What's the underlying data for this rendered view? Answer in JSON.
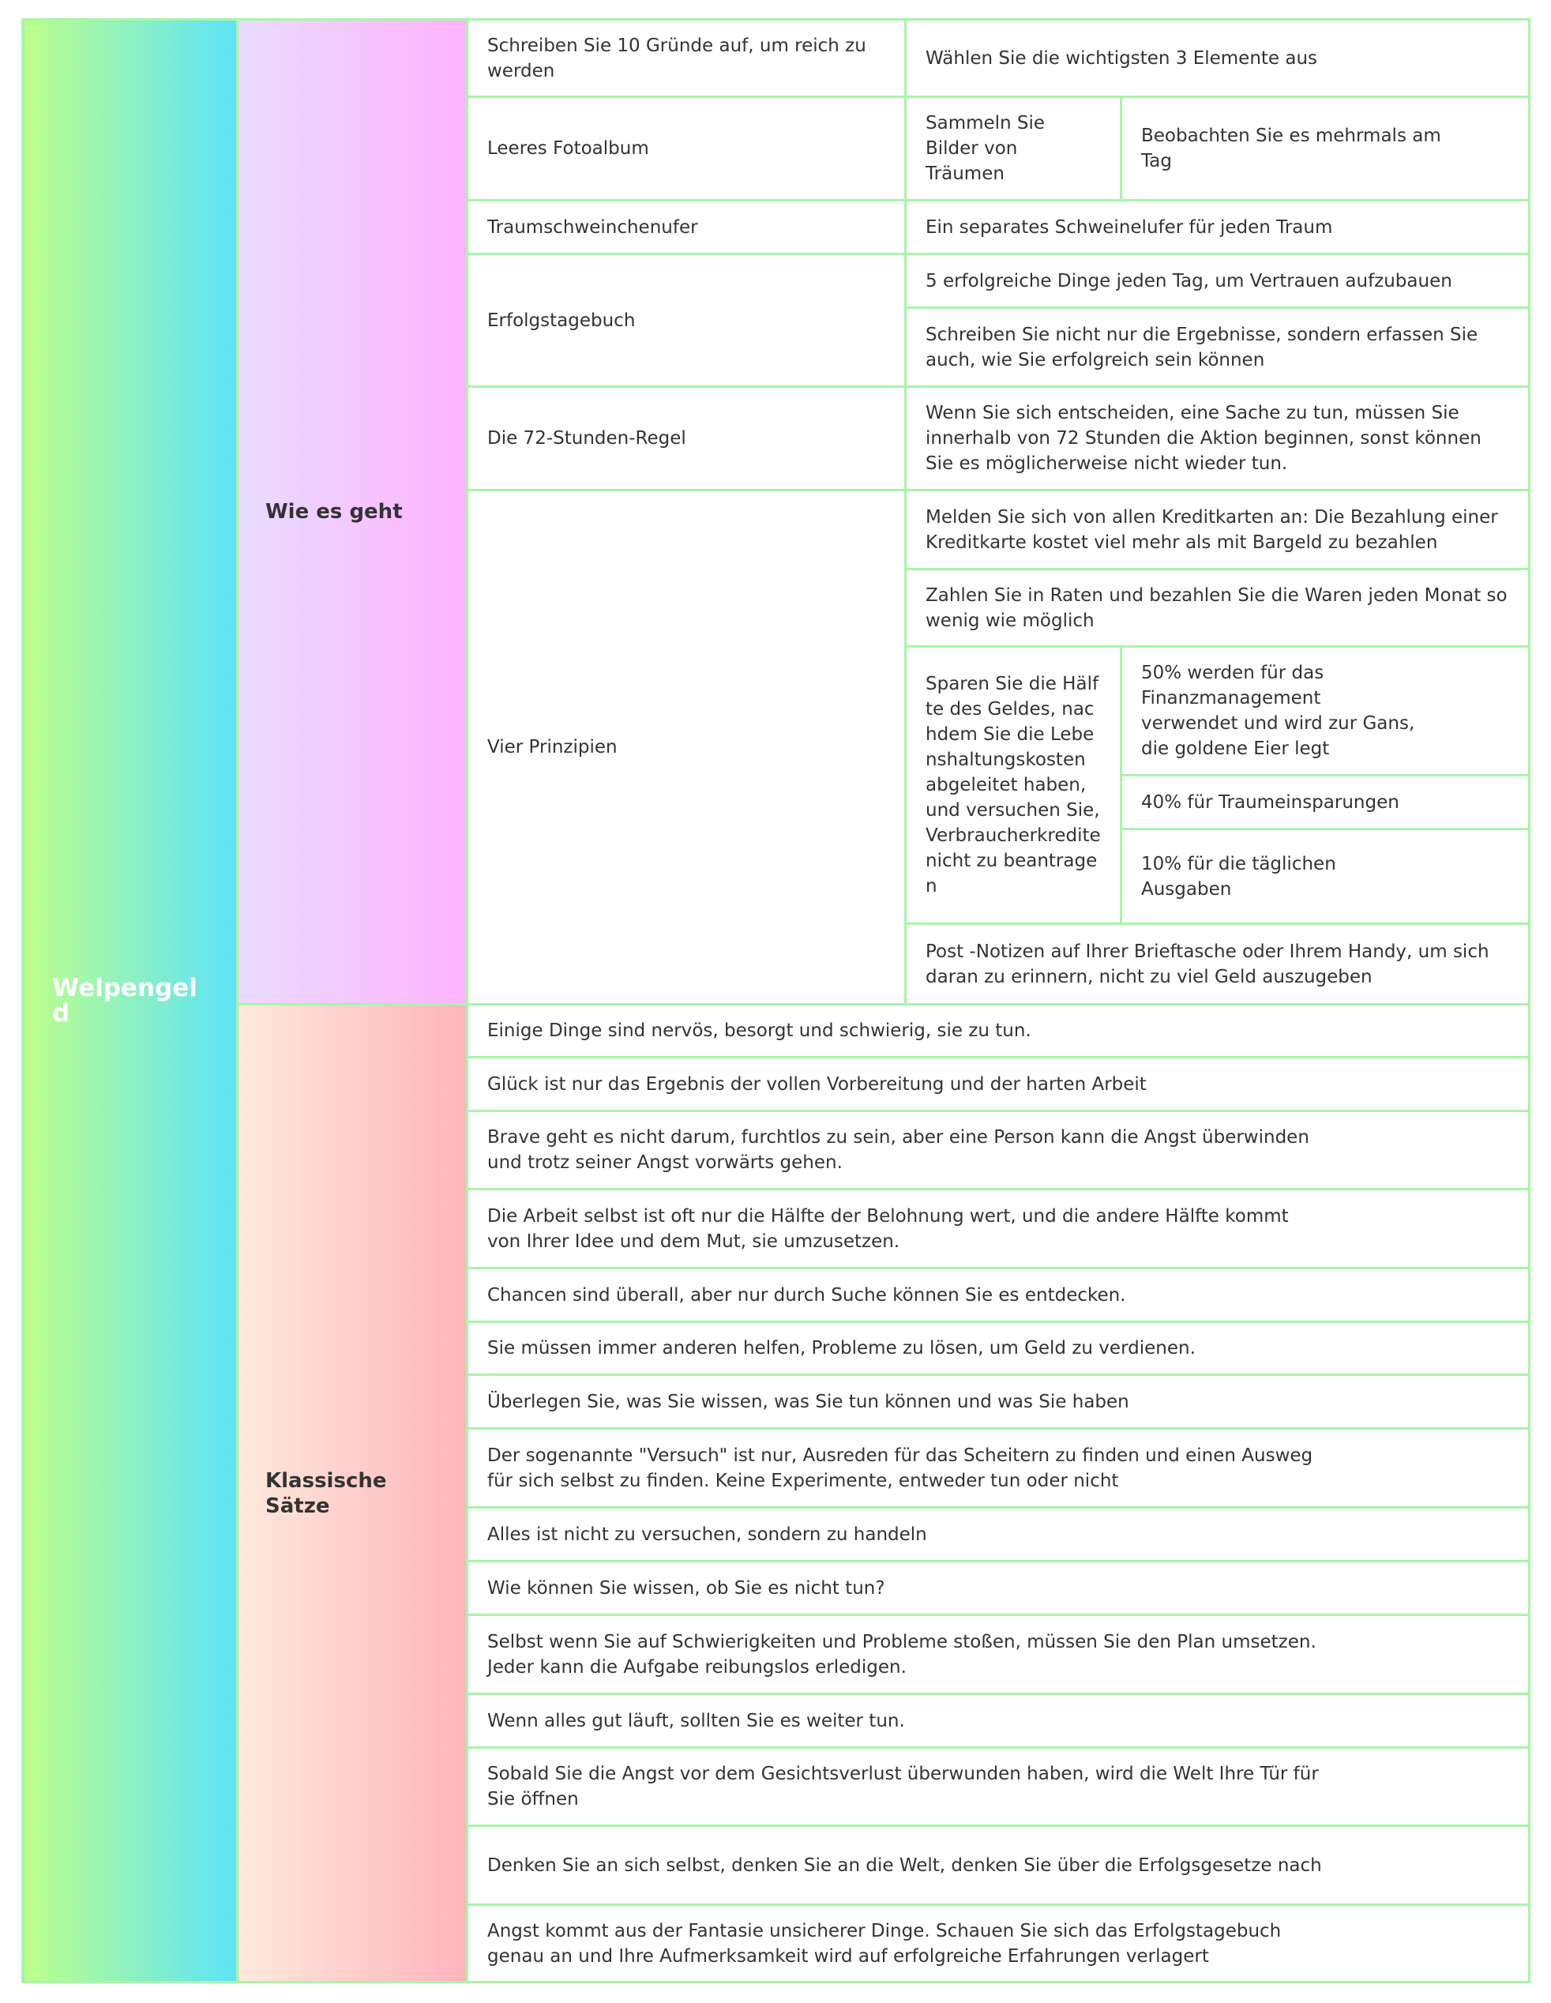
{
  "root": "Welpengeld",
  "branches": [
    {
      "label": "Wie es geht"
    },
    {
      "label": "Klassische Sätze"
    }
  ],
  "how": {
    "r1": {
      "topic": "Schreiben Sie 10 Gründe auf, um reich zu werden",
      "detail": "Wählen Sie die wichtigsten 3 Elemente aus"
    },
    "r2": {
      "topic": "Leeres Fotoalbum",
      "detail": "Sammeln Sie Bilder von Träumen",
      "sub": "Beobachten Sie es mehrmals am Tag"
    },
    "r3": {
      "topic": "Traumschweinchenufer",
      "detail": "Ein separates Schweinelufer für jeden Traum"
    },
    "r4": {
      "topic": "Erfolgstagebuch",
      "details": [
        "5 erfolgreiche Dinge jeden Tag, um Vertrauen aufzubauen",
        "Schreiben Sie nicht nur die Ergebnisse, sondern erfassen Sie auch, wie Sie erfolgreich sein können"
      ]
    },
    "r5": {
      "topic": "Die 72-Stunden-Regel",
      "detail": "Wenn Sie sich entscheiden, eine Sache zu tun, müssen Sie innerhalb von 72 Stunden die Aktion beginnen, sonst können Sie es möglicherweise nicht wieder tun."
    },
    "r6": {
      "topic": "Vier Prinzipien",
      "p1": "Melden Sie sich von allen Kreditkarten an: Die Bezahlung einer Kreditkarte kostet viel mehr als mit Bargeld zu bezahlen",
      "p2": "Zahlen Sie in Raten und bezahlen Sie die Waren jeden Monat so wenig wie möglich",
      "p3": "Sparen Sie die Hälfte des Geldes, nachdem Sie die Lebenshaltungskosten abgeleitet haben, und versuchen Sie, Verbraucherkredite nicht zu beantragen",
      "p3_subs": [
        "50% werden für das Finanzmanagement verwendet und wird zur Gans, die goldene Eier legt",
        "40% für Traumeinsparungen",
        "10% für die täglichen Ausgaben"
      ],
      "p4": "Post -Notizen auf Ihrer Brieftasche oder Ihrem Handy, um sich daran zu erinnern, nicht zu viel Geld auszugeben"
    }
  },
  "quotes": [
    "Einige Dinge sind nervös, besorgt und schwierig, sie zu tun.",
    "Glück ist nur das Ergebnis der vollen Vorbereitung und der harten Arbeit",
    "Brave geht es nicht darum, furchtlos zu sein, aber eine Person kann die Angst überwinden und trotz seiner Angst vorwärts gehen.",
    "Die Arbeit selbst ist oft nur die Hälfte der Belohnung wert, und die andere Hälfte kommt von Ihrer Idee und dem Mut, sie umzusetzen.",
    "Chancen sind überall, aber nur durch Suche können Sie es entdecken.",
    "Sie müssen immer anderen helfen, Probleme zu lösen, um Geld zu verdienen.",
    "Überlegen Sie, was Sie wissen, was Sie tun können und was Sie haben",
    "Der sogenannte \"Versuch\" ist nur, Ausreden für das Scheitern zu finden und einen Ausweg für sich selbst zu finden. Keine Experimente, entweder tun oder nicht",
    "Alles ist nicht zu versuchen, sondern zu handeln",
    "Wie können Sie wissen, ob Sie es nicht tun?",
    "Selbst wenn Sie auf Schwierigkeiten und Probleme stoßen, müssen Sie den Plan umsetzen. Jeder kann die Aufgabe reibungslos erledigen.",
    "Wenn alles gut läuft, sollten Sie es weiter tun.",
    "Sobald Sie die Angst vor dem Gesichtsverlust überwunden haben, wird die Welt Ihre Tür für Sie öffnen",
    "Denken Sie an sich selbst, denken Sie an die Welt, denken Sie über die Erfolgsgesetze nach",
    "Angst kommt aus der Fantasie unsicherer Dinge. Schauen Sie sich das Erfolgstagebuch genau an und Ihre Aufmerksamkeit wird auf erfolgreiche Erfahrungen verlagert"
  ],
  "colors": {
    "border": "#a8f5a8",
    "root_gradient": [
      "#bdff8a",
      "#5de3f8"
    ],
    "branch1_gradient": [
      "#e8dcff",
      "#ffb3ff"
    ],
    "branch2_gradient": [
      "#ffe9dc",
      "#ffb4bd"
    ]
  }
}
